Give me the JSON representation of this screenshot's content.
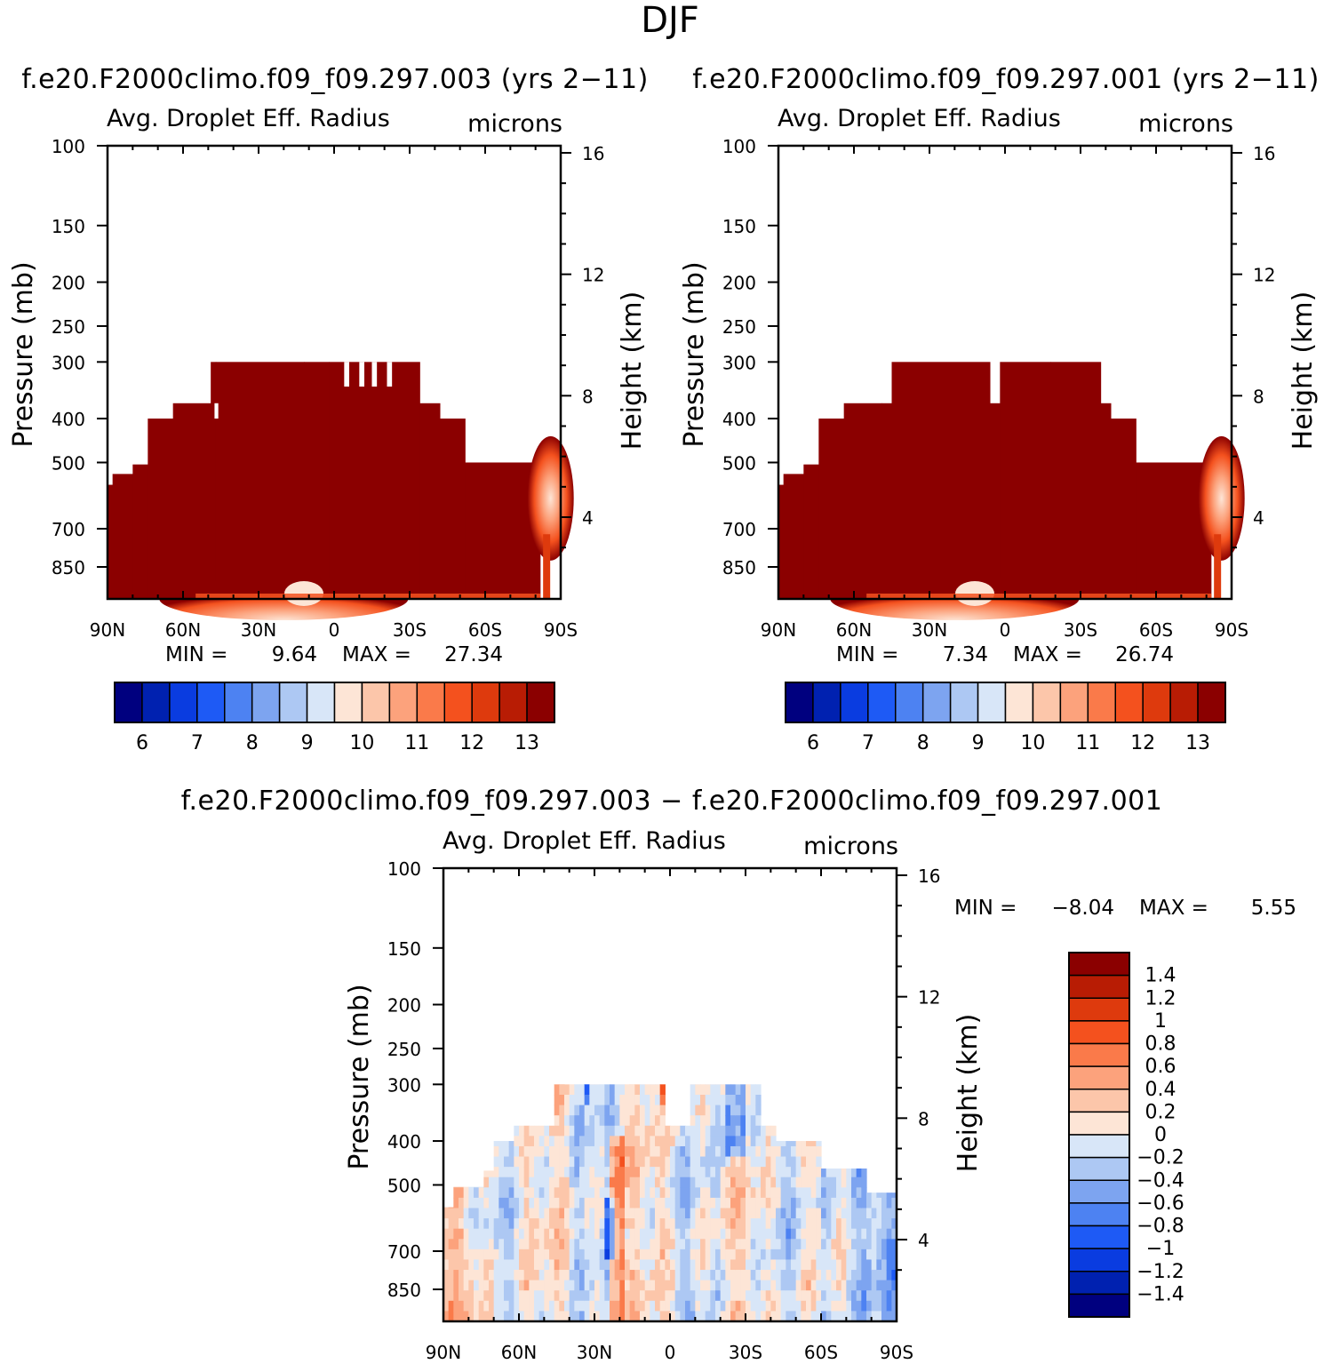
{
  "figure_title": "DJF",
  "chart_data": [
    {
      "type": "heatmap",
      "title": "f.e20.F2000climo.f09_f09.297.003 (yrs 2−11)",
      "variable": "Avg. Droplet Eff. Radius",
      "units": "microns",
      "xlabel": "",
      "ylabel": "Pressure (mb)",
      "y2label": "Height (km)",
      "x_ticks": [
        "90N",
        "60N",
        "30N",
        "0",
        "30S",
        "60S",
        "90S"
      ],
      "y_ticks": [
        100,
        150,
        200,
        250,
        300,
        400,
        500,
        700,
        850
      ],
      "y_tick_labels": [
        "100",
        "150",
        "200",
        "250",
        "300",
        "400",
        "500",
        "700",
        "850"
      ],
      "y2_ticks": [
        16,
        12,
        8,
        4
      ],
      "y2_tick_labels": [
        "16",
        "12",
        "8",
        "4"
      ],
      "ylim": [
        1000,
        100
      ],
      "xlim": [
        90,
        -90
      ],
      "min_label": "MIN =",
      "min_value": "9.64",
      "max_label": "MAX =",
      "max_value": "27.34",
      "colorbar": {
        "orientation": "horizontal",
        "tick_labels": [
          "6",
          "7",
          "8",
          "9",
          "10",
          "11",
          "12",
          "13"
        ],
        "colors": [
          "#00007f",
          "#0021b0",
          "#0a3ce0",
          "#1e5af5",
          "#4d82f2",
          "#7da4f0",
          "#adc8f3",
          "#d8e6f8",
          "#fde5d6",
          "#fcc6aa",
          "#fca27c",
          "#fa7a4a",
          "#f4511e",
          "#de3a0d",
          "#b81c04",
          "#8b0000"
        ]
      }
    },
    {
      "type": "heatmap",
      "title": "f.e20.F2000climo.f09_f09.297.001 (yrs 2−11)",
      "variable": "Avg. Droplet Eff. Radius",
      "units": "microns",
      "xlabel": "",
      "ylabel": "Pressure (mb)",
      "y2label": "Height (km)",
      "x_ticks": [
        "90N",
        "60N",
        "30N",
        "0",
        "30S",
        "60S",
        "90S"
      ],
      "y_ticks": [
        100,
        150,
        200,
        250,
        300,
        400,
        500,
        700,
        850
      ],
      "y_tick_labels": [
        "100",
        "150",
        "200",
        "250",
        "300",
        "400",
        "500",
        "700",
        "850"
      ],
      "y2_ticks": [
        16,
        12,
        8,
        4
      ],
      "y2_tick_labels": [
        "16",
        "12",
        "8",
        "4"
      ],
      "ylim": [
        1000,
        100
      ],
      "xlim": [
        90,
        -90
      ],
      "min_label": "MIN =",
      "min_value": "7.34",
      "max_label": "MAX =",
      "max_value": "26.74",
      "colorbar": {
        "orientation": "horizontal",
        "tick_labels": [
          "6",
          "7",
          "8",
          "9",
          "10",
          "11",
          "12",
          "13"
        ],
        "colors": [
          "#00007f",
          "#0021b0",
          "#0a3ce0",
          "#1e5af5",
          "#4d82f2",
          "#7da4f0",
          "#adc8f3",
          "#d8e6f8",
          "#fde5d6",
          "#fcc6aa",
          "#fca27c",
          "#fa7a4a",
          "#f4511e",
          "#de3a0d",
          "#b81c04",
          "#8b0000"
        ]
      }
    },
    {
      "type": "heatmap",
      "title": "f.e20.F2000climo.f09_f09.297.003 − f.e20.F2000climo.f09_f09.297.001",
      "variable": "Avg. Droplet Eff. Radius",
      "units": "microns",
      "xlabel": "",
      "ylabel": "Pressure (mb)",
      "y2label": "Height (km)",
      "x_ticks": [
        "90N",
        "60N",
        "30N",
        "0",
        "30S",
        "60S",
        "90S"
      ],
      "y_ticks": [
        100,
        150,
        200,
        250,
        300,
        400,
        500,
        700,
        850
      ],
      "y_tick_labels": [
        "100",
        "150",
        "200",
        "250",
        "300",
        "400",
        "500",
        "700",
        "850"
      ],
      "y2_ticks": [
        16,
        12,
        8,
        4
      ],
      "y2_tick_labels": [
        "16",
        "12",
        "8",
        "4"
      ],
      "ylim": [
        1000,
        100
      ],
      "xlim": [
        90,
        -90
      ],
      "min_label": "MIN =",
      "min_value": "−8.04",
      "max_label": "MAX =",
      "max_value": "5.55",
      "colorbar": {
        "orientation": "vertical",
        "tick_labels": [
          "1.4",
          "1.2",
          "1",
          "0.8",
          "0.6",
          "0.4",
          "0.2",
          "0",
          "−0.2",
          "−0.4",
          "−0.6",
          "−0.8",
          "−1",
          "−1.2",
          "−1.4"
        ],
        "colors": [
          "#8b0000",
          "#b81c04",
          "#de3a0d",
          "#f4511e",
          "#fa7a4a",
          "#fca27c",
          "#fcc6aa",
          "#fde5d6",
          "#d8e6f8",
          "#adc8f3",
          "#7da4f0",
          "#4d82f2",
          "#1e5af5",
          "#0a3ce0",
          "#0021b0",
          "#00007f"
        ]
      }
    }
  ]
}
